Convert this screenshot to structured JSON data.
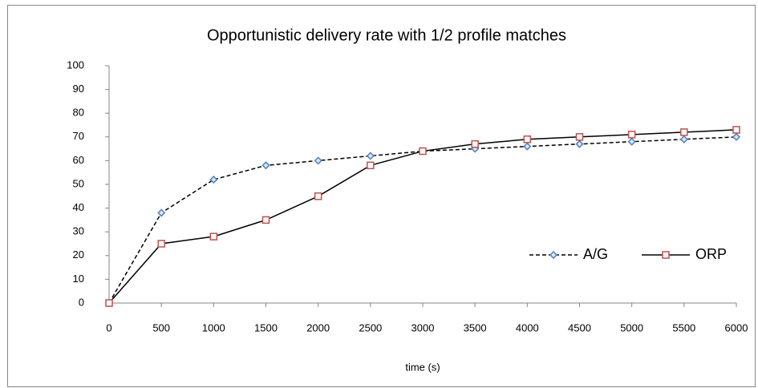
{
  "chart_data": {
    "type": "line",
    "title": "Opportunistic delivery rate with 1/2  profile matches",
    "x_label": "time (s)",
    "x": [
      0,
      500,
      1000,
      1500,
      2000,
      2500,
      3000,
      3500,
      4000,
      4500,
      5000,
      5500,
      6000
    ],
    "series": [
      {
        "name": "A/G",
        "color": "#4f81bd",
        "line_color": "#000000",
        "line_style": "dashed",
        "marker": "diamond",
        "values": [
          0,
          38,
          52,
          58,
          60,
          62,
          64,
          65,
          66,
          67,
          68,
          69,
          70
        ]
      },
      {
        "name": "ORP",
        "color": "#c0504d",
        "line_color": "#000000",
        "line_style": "solid",
        "marker": "square",
        "values": [
          0,
          25,
          28,
          35,
          45,
          58,
          64,
          67,
          69,
          70,
          71,
          72,
          73
        ]
      }
    ],
    "xlim": [
      0,
      6000
    ],
    "xticks": [
      0,
      500,
      1000,
      1500,
      2000,
      2500,
      3000,
      3500,
      4000,
      4500,
      5000,
      5500,
      6000
    ],
    "ylim": [
      0,
      100
    ],
    "yticks": [
      0,
      10,
      20,
      30,
      40,
      50,
      60,
      70,
      80,
      90,
      100
    ],
    "grid": false,
    "legend": "lower right"
  }
}
